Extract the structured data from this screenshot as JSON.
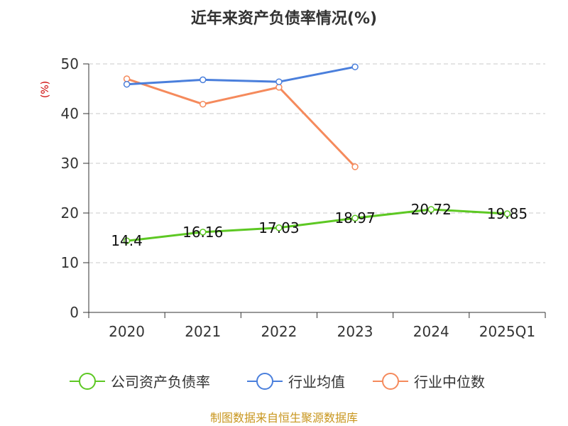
{
  "chart_data": {
    "type": "line",
    "title": "近年来资产负债率情况(%)",
    "ylabel": "(%)",
    "categories": [
      "2020",
      "2021",
      "2022",
      "2023",
      "2024",
      "2025Q1"
    ],
    "yticks": [
      "0",
      "10",
      "20",
      "30",
      "40",
      "50"
    ],
    "ylim": [
      0,
      50
    ],
    "grid": true,
    "legend_position": "bottom",
    "series": [
      {
        "name": "公司资产负债率",
        "color": "#5dc823",
        "values": [
          14.4,
          16.16,
          17.03,
          18.97,
          20.72,
          19.85
        ],
        "labels": [
          "14.4",
          "16.16",
          "17.03",
          "18.97",
          "20.72",
          "19.85"
        ]
      },
      {
        "name": "行业均值",
        "color": "#4a7fdc",
        "values": [
          45.9,
          46.8,
          46.4,
          49.4,
          null,
          null
        ]
      },
      {
        "name": "行业中位数",
        "color": "#f58a5c",
        "values": [
          47.0,
          41.9,
          45.3,
          29.3,
          null,
          null
        ]
      }
    ]
  },
  "source": "制图数据来自恒生聚源数据库"
}
